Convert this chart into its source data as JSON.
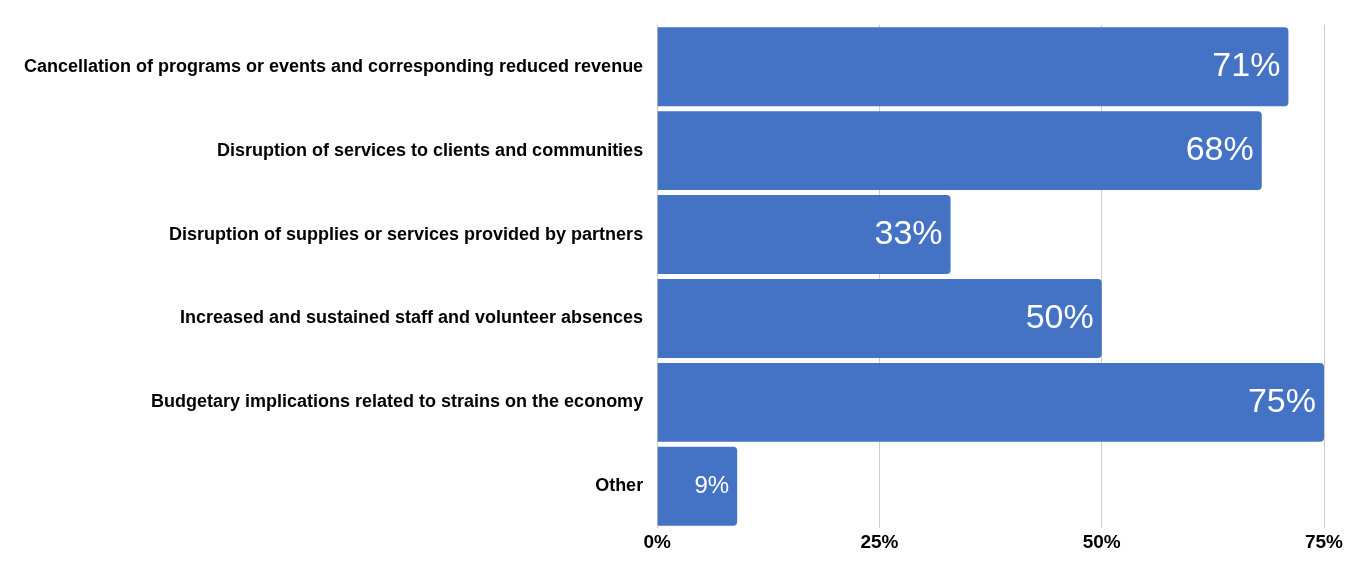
{
  "chart_data": {
    "type": "bar",
    "orientation": "horizontal",
    "categories": [
      "Cancellation of programs or events and corresponding reduced revenue",
      "Disruption of services to clients and communities",
      "Disruption of supplies or services provided by partners",
      "Increased and sustained staff and volunteer absences",
      "Budgetary implications related to strains on the economy",
      "Other"
    ],
    "values": [
      71,
      68,
      33,
      50,
      75,
      9
    ],
    "value_labels": [
      "71%",
      "68%",
      "33%",
      "50%",
      "75%",
      "9%"
    ],
    "color": "#4472c4",
    "xlim": [
      0,
      75
    ],
    "xticks": [
      {
        "value": 0,
        "label": "0%"
      },
      {
        "value": 25,
        "label": "25%"
      },
      {
        "value": 50,
        "label": "50%"
      },
      {
        "value": 75,
        "label": "75%"
      }
    ],
    "grid": "x",
    "legend": false
  }
}
